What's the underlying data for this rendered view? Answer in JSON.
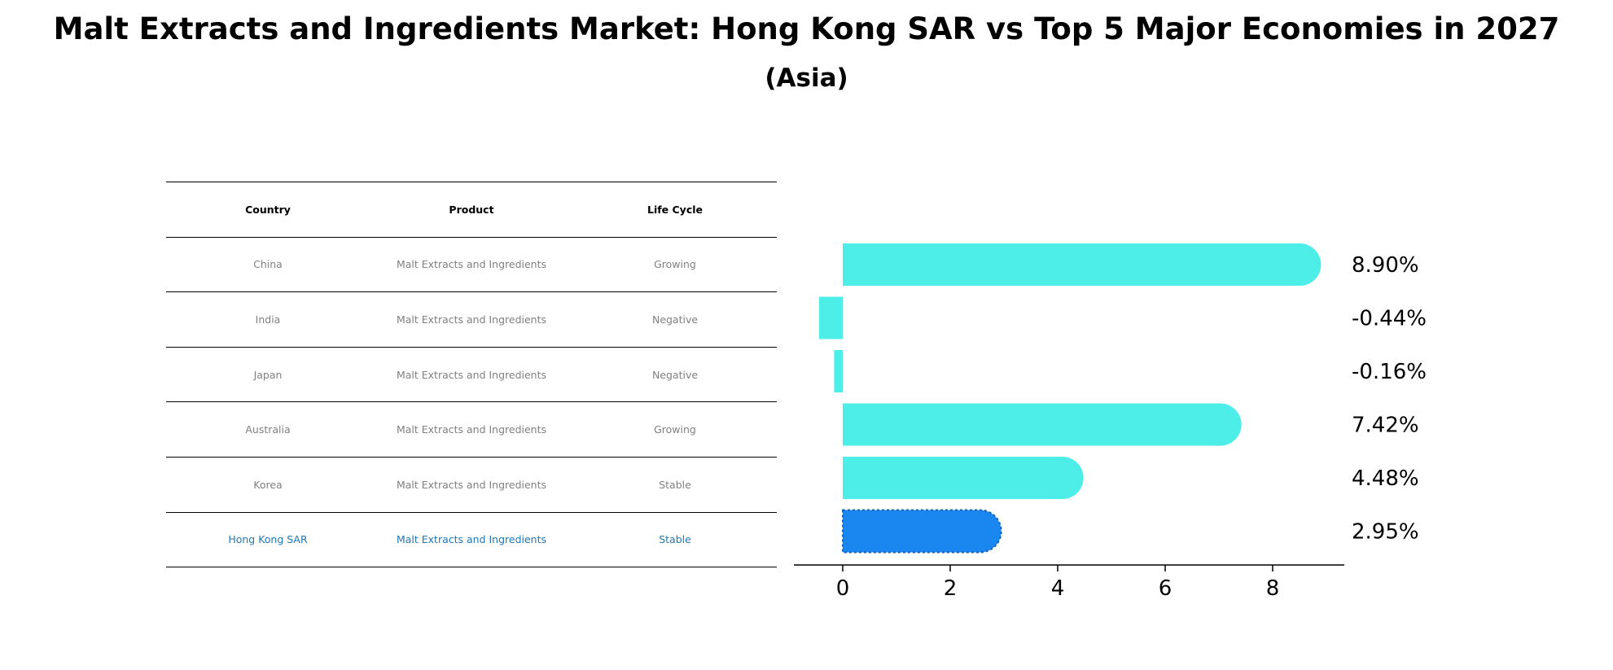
{
  "title": "Malt Extracts and Ingredients Market: Hong Kong SAR vs Top 5 Major Economies in 2027",
  "subtitle": "(Asia)",
  "table": {
    "headers": [
      "Country",
      "Product",
      "Life Cycle"
    ],
    "rows": [
      [
        "China",
        "Malt Extracts and Ingredients",
        "Growing"
      ],
      [
        "India",
        "Malt Extracts and Ingredients",
        "Negative"
      ],
      [
        "Japan",
        "Malt Extracts and Ingredients",
        "Negative"
      ],
      [
        "Australia",
        "Malt Extracts and Ingredients",
        "Growing"
      ],
      [
        "Korea",
        "Malt Extracts and Ingredients",
        "Stable"
      ],
      [
        "Hong Kong SAR",
        "Malt Extracts and Ingredients",
        "Stable"
      ]
    ],
    "highlight_row": 5
  },
  "chart_data": {
    "type": "bar",
    "orientation": "horizontal",
    "categories": [
      "China",
      "India",
      "Japan",
      "Australia",
      "Korea",
      "Hong Kong SAR"
    ],
    "values": [
      8.9,
      -0.44,
      -0.16,
      7.42,
      4.48,
      2.95
    ],
    "labels": [
      "8.90%",
      "-0.44%",
      "-0.16%",
      "7.42%",
      "4.48%",
      "2.95%"
    ],
    "xticks": [
      0,
      2,
      4,
      6,
      8
    ],
    "xlim": [
      -0.9,
      9.4
    ],
    "colors": {
      "default": "#4deee8",
      "highlight": "#1a86f0"
    },
    "highlight_index": 5
  }
}
